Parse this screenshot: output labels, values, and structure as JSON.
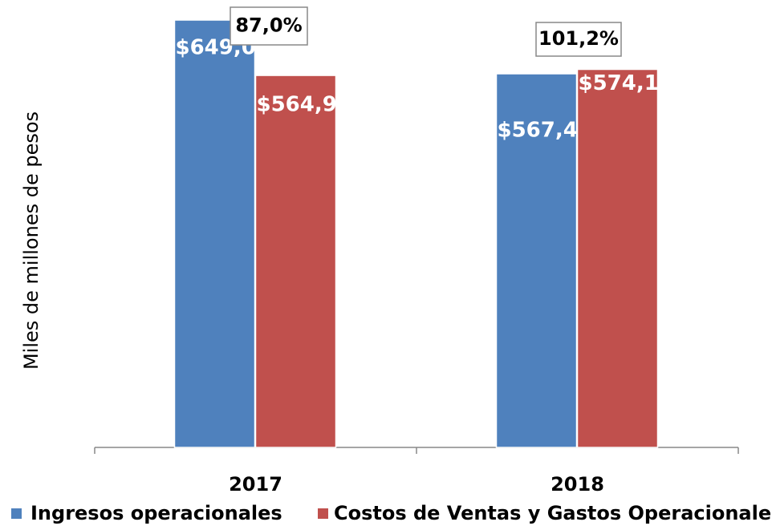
{
  "chart_data": {
    "type": "bar",
    "y_label": "Miles de millones de pesos",
    "categories": [
      "2017",
      "2018"
    ],
    "series": [
      {
        "name": "Ingresos operacionales",
        "color": "#4f81bd",
        "values": [
          649.0,
          567.4
        ],
        "value_labels": [
          "$649,0",
          "$567,4"
        ]
      },
      {
        "name": "Costos de Ventas y Gastos Operacionales",
        "color": "#c0504d",
        "values": [
          564.9,
          574.1
        ],
        "value_labels": [
          "$564,9",
          "$574,1"
        ]
      }
    ],
    "annotations": [
      "87,0%",
      "101,2%"
    ],
    "legend": "bottom"
  }
}
